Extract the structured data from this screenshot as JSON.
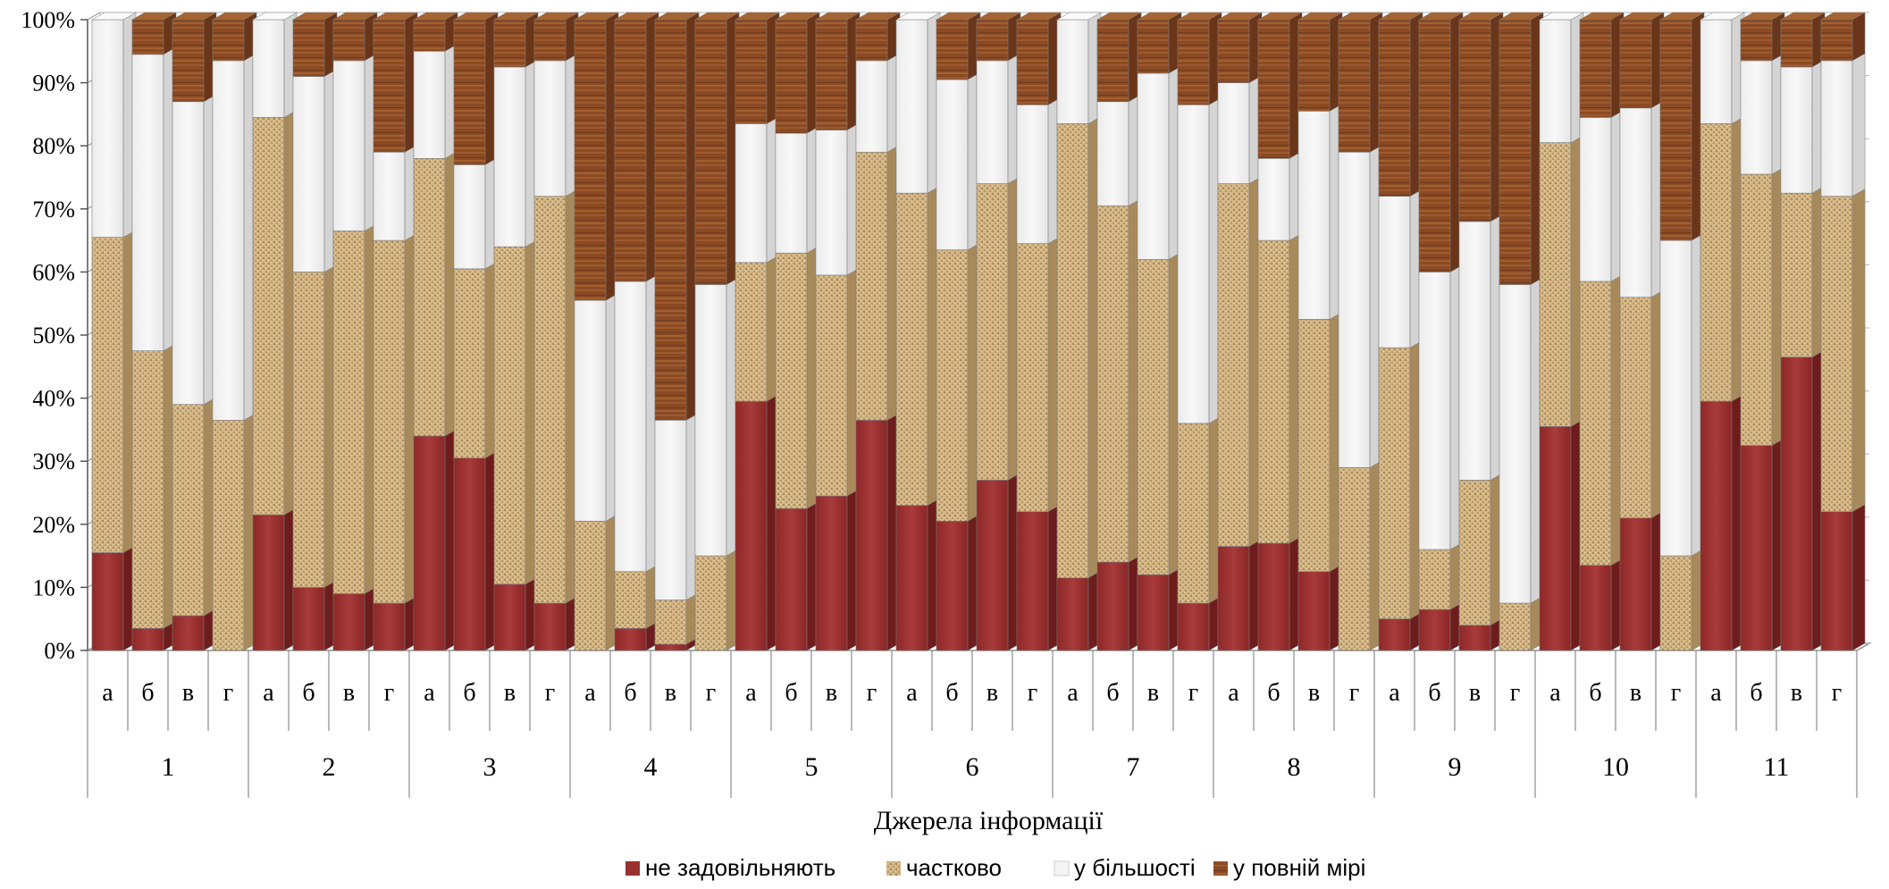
{
  "chart_data": {
    "type": "bar",
    "stacked": true,
    "percent": true,
    "title": "",
    "xlabel": "Джерела інформації",
    "ylabel": "",
    "ylim": [
      0,
      100
    ],
    "yticks": [
      "0%",
      "10%",
      "20%",
      "30%",
      "40%",
      "50%",
      "60%",
      "70%",
      "80%",
      "90%",
      "100%"
    ],
    "groups": [
      "1",
      "2",
      "3",
      "4",
      "5",
      "6",
      "7",
      "8",
      "9",
      "10",
      "11"
    ],
    "subcategories": [
      "а",
      "б",
      "в",
      "г"
    ],
    "legend_position": "bottom",
    "series": [
      {
        "name": "не задовільняють",
        "color": "#9b3030",
        "values": [
          15.5,
          3.5,
          5.5,
          0,
          21.5,
          10,
          9,
          7.5,
          34,
          30.5,
          10.5,
          7.5,
          0,
          3.5,
          1,
          0,
          39.5,
          22.5,
          24.5,
          36.5,
          23,
          20.5,
          27,
          22,
          11.5,
          14,
          12,
          7.5,
          16.5,
          17,
          12.5,
          0,
          5,
          6.5,
          4,
          0,
          35.5,
          13.5,
          21,
          0,
          39.5,
          32.5,
          46.5,
          22
        ]
      },
      {
        "name": "частково",
        "color": "#c9ad7a",
        "values": [
          50,
          44,
          33.5,
          36.5,
          63,
          50,
          57.5,
          57.5,
          44,
          30,
          53.5,
          64.5,
          20.5,
          9,
          7,
          15,
          22,
          40.5,
          35,
          42.5,
          49.5,
          43,
          47,
          42.5,
          72,
          56.5,
          50,
          28.5,
          57.5,
          48,
          40,
          29,
          43,
          9.5,
          23,
          7.5,
          45,
          45,
          35,
          15,
          44,
          43,
          26,
          50
        ]
      },
      {
        "name": "у більшості",
        "color": "#f2f2f2",
        "values": [
          34.5,
          47,
          48,
          57,
          15.5,
          31,
          27,
          14,
          17,
          16.5,
          28.5,
          21.5,
          35,
          46,
          28.5,
          43,
          22,
          19,
          23,
          14.5,
          27.5,
          27,
          19.5,
          22,
          16.5,
          16.5,
          29.5,
          50.5,
          16,
          13,
          33,
          50,
          24,
          44,
          41,
          50.5,
          19.5,
          26,
          30,
          50,
          16.5,
          18,
          20,
          21.5
        ]
      },
      {
        "name": "у повній мірі",
        "color": "#8b4a26",
        "values": [
          0,
          5.5,
          13,
          6.5,
          0,
          9,
          6.5,
          21,
          5,
          23,
          7.5,
          6.5,
          44.5,
          41.5,
          63.5,
          42,
          16.5,
          18,
          17.5,
          6.5,
          0,
          9.5,
          6.5,
          13.5,
          0,
          13,
          8.5,
          13.5,
          10,
          22,
          14.5,
          21,
          28,
          40,
          32,
          42,
          0,
          15.5,
          14,
          35,
          0,
          6.5,
          7.5,
          6.5
        ]
      }
    ]
  }
}
